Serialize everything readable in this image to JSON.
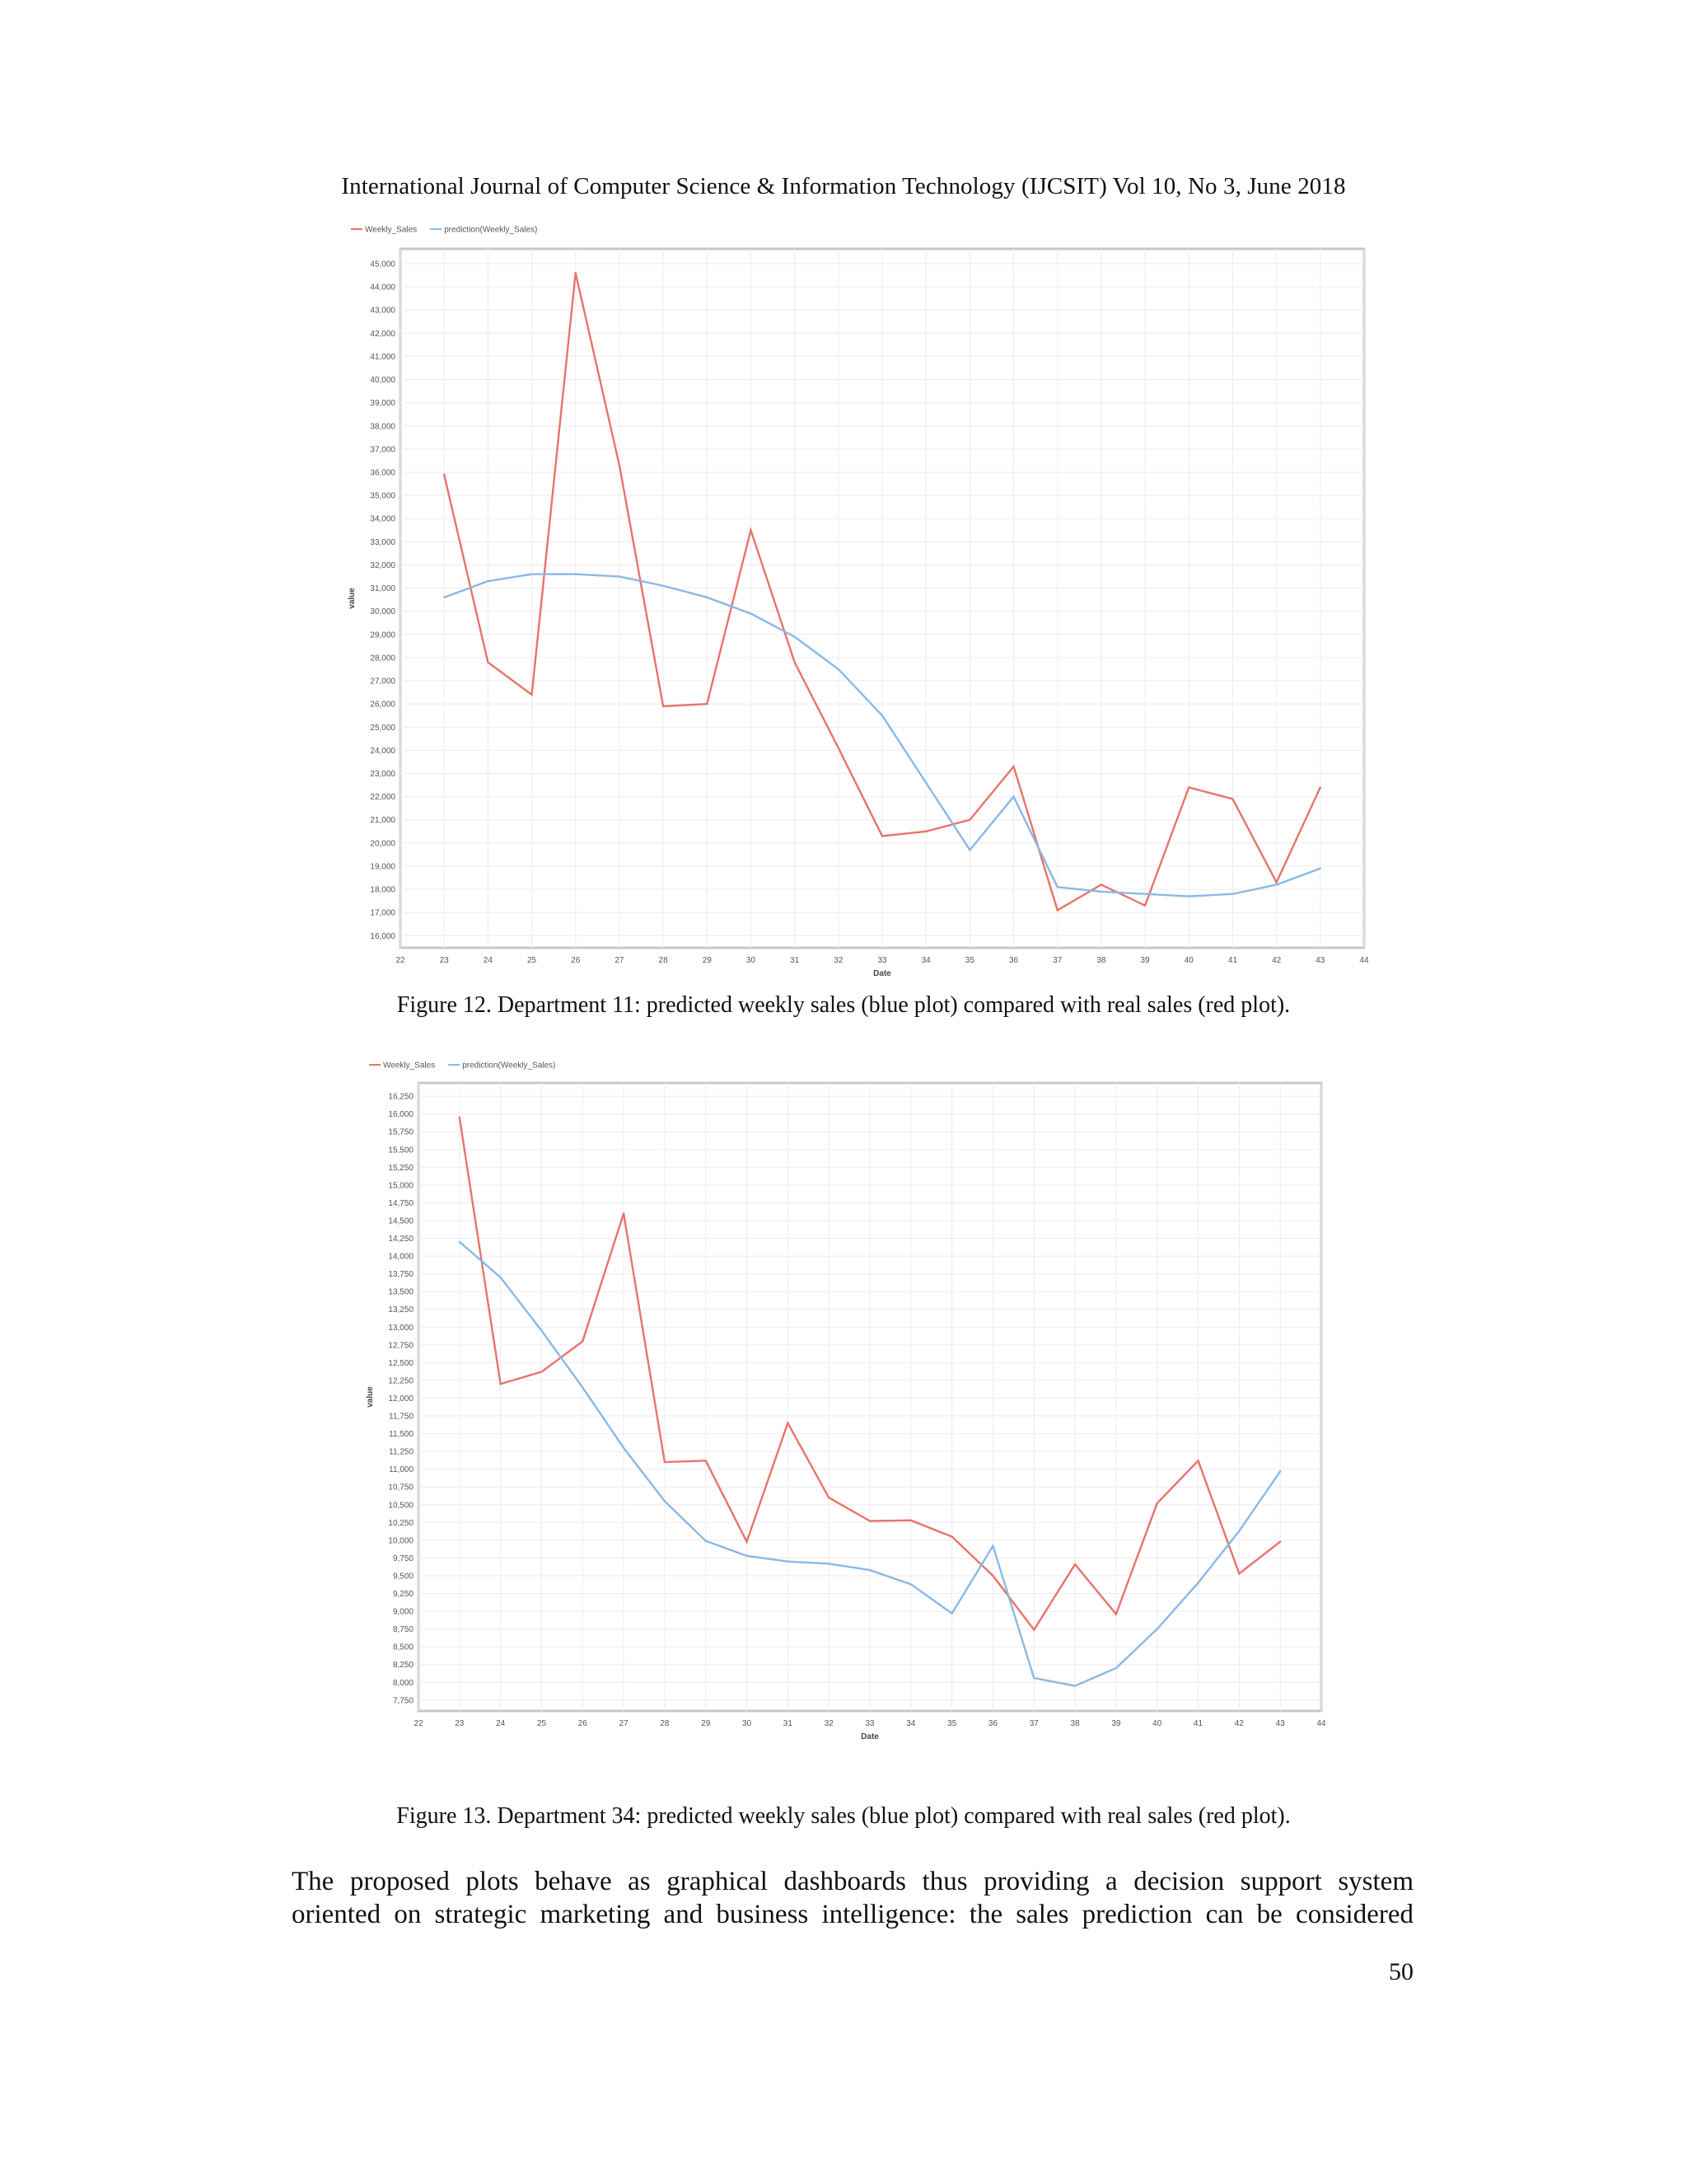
{
  "header": {
    "text": "International Journal of Computer Science & Information Technology (IJCSIT) Vol 10, No 3, June 2018"
  },
  "chart_data": [
    {
      "type": "line",
      "x": [
        23,
        24,
        25,
        26,
        27,
        28,
        29,
        30,
        31,
        32,
        33,
        34,
        35,
        36,
        37,
        38,
        39,
        40,
        41,
        42,
        43
      ],
      "series": [
        {
          "name": "Weekly_Sales",
          "color": "#e8736a",
          "values": [
            35900,
            27800,
            26400,
            44600,
            36300,
            25900,
            26000,
            33500,
            27800,
            24100,
            20300,
            20500,
            21000,
            23300,
            17100,
            18200,
            17300,
            22400,
            21900,
            18300,
            22400
          ]
        },
        {
          "name": "prediction(Weekly_Sales)",
          "color": "#8ab8e6",
          "values": [
            30600,
            31300,
            31600,
            31600,
            31500,
            31100,
            30600,
            29900,
            28900,
            27500,
            25500,
            22600,
            19700,
            22000,
            18100,
            17900,
            17800,
            17700,
            17800,
            18200,
            18900
          ]
        }
      ],
      "xlabel": "Date",
      "ylabel": "value",
      "xlim": [
        22,
        44
      ],
      "ylim": [
        16000,
        45000
      ],
      "x_ticks": [
        22,
        23,
        24,
        25,
        26,
        27,
        28,
        29,
        30,
        31,
        32,
        33,
        34,
        35,
        36,
        37,
        38,
        39,
        40,
        41,
        42,
        43,
        44
      ],
      "y_ticks": [
        16000,
        17000,
        18000,
        19000,
        20000,
        21000,
        22000,
        23000,
        24000,
        25000,
        26000,
        27000,
        28000,
        29000,
        30000,
        31000,
        32000,
        33000,
        34000,
        35000,
        36000,
        37000,
        38000,
        39000,
        40000,
        41000,
        42000,
        43000,
        44000,
        45000
      ],
      "grid": true,
      "legend": "top-left"
    },
    {
      "type": "line",
      "x": [
        23,
        24,
        25,
        26,
        27,
        28,
        29,
        30,
        31,
        32,
        33,
        34,
        35,
        36,
        37,
        38,
        39,
        40,
        41,
        42,
        43
      ],
      "series": [
        {
          "name": "Weekly_Sales",
          "color": "#e8736a",
          "values": [
            15950,
            12200,
            12370,
            12800,
            14600,
            11100,
            11120,
            9980,
            11650,
            10600,
            10270,
            10280,
            10050,
            9500,
            8740,
            9660,
            8960,
            10520,
            11120,
            9530,
            9980
          ]
        },
        {
          "name": "prediction(Weekly_Sales)",
          "color": "#8ab8e6",
          "values": [
            14200,
            13700,
            12950,
            12150,
            11300,
            10550,
            9990,
            9780,
            9700,
            9670,
            9580,
            9380,
            8970,
            9920,
            8060,
            7950,
            8200,
            8750,
            9400,
            10130,
            10970
          ]
        }
      ],
      "xlabel": "Date",
      "ylabel": "value",
      "xlim": [
        22,
        44
      ],
      "ylim": [
        7750,
        16250
      ],
      "x_ticks": [
        22,
        23,
        24,
        25,
        26,
        27,
        28,
        29,
        30,
        31,
        32,
        33,
        34,
        35,
        36,
        37,
        38,
        39,
        40,
        41,
        42,
        43,
        44
      ],
      "y_ticks": [
        7750,
        8000,
        8250,
        8500,
        8750,
        9000,
        9250,
        9500,
        9750,
        10000,
        10250,
        10500,
        10750,
        11000,
        11250,
        11500,
        11750,
        12000,
        12250,
        12500,
        12750,
        13000,
        13250,
        13500,
        13750,
        14000,
        14250,
        14500,
        14750,
        15000,
        15250,
        15500,
        15750,
        16000,
        16250
      ],
      "grid": true,
      "legend": "top-left"
    }
  ],
  "captions": {
    "fig12": "Figure 12.  Department 11: predicted weekly sales (blue plot) compared with real sales (red plot).",
    "fig13": "Figure 13.  Department 34: predicted weekly sales (blue plot) compared with real sales (red plot)."
  },
  "body": {
    "line1": "The proposed plots behave as graphical dashboards thus providing a decision support system",
    "line2": "oriented  on strategic marketing and business intelligence: the sales prediction can be considered"
  },
  "page_number": "50"
}
